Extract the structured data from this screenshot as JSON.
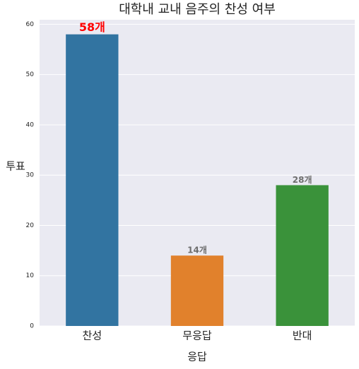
{
  "chart_data": {
    "type": "bar",
    "title": "대학내 교내 음주의 찬성 여부",
    "xlabel": "응답",
    "ylabel": "투표",
    "categories": [
      "찬성",
      "무응답",
      "반대"
    ],
    "values": [
      58,
      14,
      28
    ],
    "value_labels": [
      "58개",
      "14개",
      "28개"
    ],
    "colors": [
      "#3274a1",
      "#e1812c",
      "#3a923a"
    ],
    "value_label_color": "#6e6e6e",
    "highlight": {
      "index": 0,
      "color": "#ff0000"
    },
    "ylim": [
      0,
      60.9
    ],
    "yticks": [
      0,
      10,
      20,
      30,
      40,
      50,
      60
    ],
    "grid": true
  }
}
